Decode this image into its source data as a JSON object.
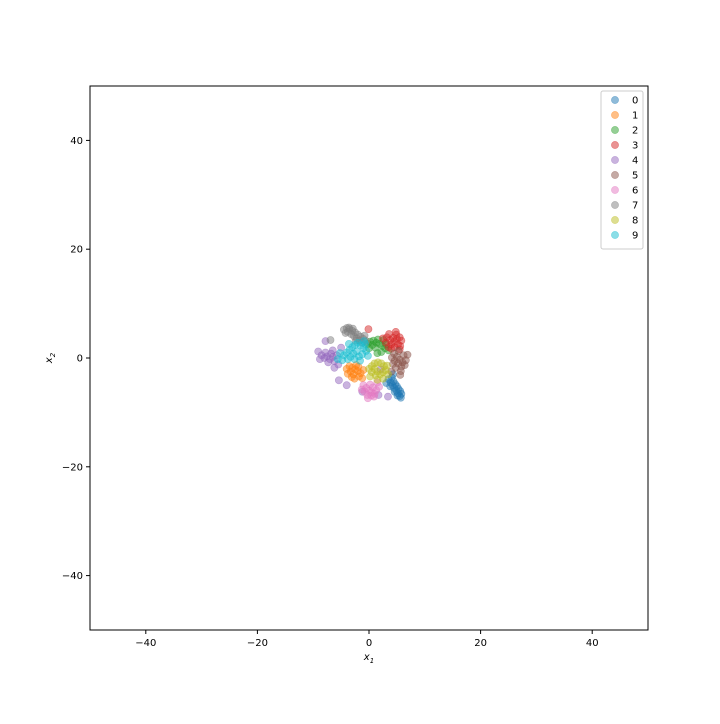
{
  "chart_data": {
    "type": "scatter",
    "title": "",
    "xlabel": "x",
    "xlabel_sub": "1",
    "ylabel": "x",
    "ylabel_sub": "2",
    "xlim": [
      -50,
      50
    ],
    "ylim": [
      -50,
      50
    ],
    "xticks": [
      -40,
      -20,
      0,
      20,
      40
    ],
    "yticks": [
      -40,
      -20,
      0,
      20,
      40
    ],
    "xtick_labels": [
      "−40",
      "−20",
      "0",
      "20",
      "40"
    ],
    "ytick_labels": [
      "−40",
      "−20",
      "0",
      "20",
      "40"
    ],
    "grid": false,
    "legend_position": "top-right",
    "series": [
      {
        "name": "0",
        "color": "#1f77b4",
        "points": [
          [
            4.4,
            -4.3
          ],
          [
            4.7,
            -4.8
          ],
          [
            5.0,
            -5.2
          ],
          [
            5.3,
            -5.7
          ],
          [
            5.6,
            -6.1
          ],
          [
            5.8,
            -6.6
          ],
          [
            5.5,
            -7.0
          ],
          [
            5.2,
            -6.5
          ],
          [
            4.9,
            -6.0
          ],
          [
            4.5,
            -5.5
          ],
          [
            4.2,
            -5.0
          ],
          [
            3.9,
            -4.5
          ],
          [
            3.5,
            -3.9
          ],
          [
            4.1,
            -3.6
          ],
          [
            5.1,
            -6.9
          ],
          [
            4.6,
            -6.2
          ],
          [
            3.8,
            -5.2
          ],
          [
            5.7,
            -7.3
          ],
          [
            3.1,
            -4.6
          ],
          [
            4.3,
            -3.0
          ]
        ]
      },
      {
        "name": "1",
        "color": "#ff7f0e",
        "points": [
          [
            -3.5,
            -1.5
          ],
          [
            -3.0,
            -1.8
          ],
          [
            -2.5,
            -2.1
          ],
          [
            -2.0,
            -2.4
          ],
          [
            -1.5,
            -2.8
          ],
          [
            -2.8,
            -3.0
          ],
          [
            -3.3,
            -2.5
          ],
          [
            -1.8,
            -3.4
          ],
          [
            -2.3,
            -1.3
          ],
          [
            -1.2,
            -3.7
          ],
          [
            -3.8,
            -2.9
          ],
          [
            -1.0,
            -2.2
          ],
          [
            -2.6,
            -3.8
          ],
          [
            -1.9,
            -1.6
          ],
          [
            -3.1,
            -3.5
          ],
          [
            -4.0,
            -2.0
          ]
        ]
      },
      {
        "name": "2",
        "color": "#2ca02c",
        "points": [
          [
            0.2,
            3.0
          ],
          [
            0.8,
            3.2
          ],
          [
            1.3,
            2.8
          ],
          [
            1.9,
            2.6
          ],
          [
            2.4,
            2.2
          ],
          [
            0.6,
            2.4
          ],
          [
            1.6,
            3.4
          ],
          [
            2.9,
            1.8
          ],
          [
            3.5,
            1.4
          ],
          [
            0.0,
            1.8
          ],
          [
            1.1,
            1.9
          ],
          [
            2.2,
            1.1
          ],
          [
            -0.2,
            2.6
          ],
          [
            3.1,
            2.5
          ],
          [
            1.5,
            0.9
          ],
          [
            2.6,
            3.3
          ]
        ]
      },
      {
        "name": "3",
        "color": "#d62728",
        "points": [
          [
            3.5,
            2.0
          ],
          [
            4.0,
            2.5
          ],
          [
            4.5,
            3.0
          ],
          [
            5.0,
            3.5
          ],
          [
            5.5,
            3.8
          ],
          [
            5.8,
            3.2
          ],
          [
            5.2,
            2.5
          ],
          [
            4.6,
            2.0
          ],
          [
            4.0,
            1.7
          ],
          [
            3.8,
            3.3
          ],
          [
            4.3,
            3.7
          ],
          [
            4.9,
            4.3
          ],
          [
            3.2,
            3.8
          ],
          [
            5.6,
            2.2
          ],
          [
            3.0,
            2.8
          ],
          [
            4.8,
            4.8
          ],
          [
            3.6,
            4.4
          ],
          [
            -0.1,
            5.3
          ],
          [
            5.5,
            1.6
          ],
          [
            2.5,
            3.6
          ]
        ]
      },
      {
        "name": "4",
        "color": "#9467bd",
        "points": [
          [
            -8.5,
            0.5
          ],
          [
            -8.0,
            0.0
          ],
          [
            -7.5,
            0.3
          ],
          [
            -7.0,
            -0.2
          ],
          [
            -6.5,
            0.2
          ],
          [
            -6.8,
            0.8
          ],
          [
            -7.8,
            1.0
          ],
          [
            -8.8,
            -0.2
          ],
          [
            -6.2,
            -0.6
          ],
          [
            -5.8,
            0.5
          ],
          [
            -7.3,
            -0.8
          ],
          [
            -6.5,
            1.4
          ],
          [
            -5.5,
            -1.2
          ],
          [
            -7.8,
            3.1
          ],
          [
            -6.2,
            -1.8
          ],
          [
            -5.4,
            -4.1
          ],
          [
            -9.1,
            1.2
          ],
          [
            -4.0,
            -5.0
          ],
          [
            -1.2,
            -6.2
          ],
          [
            1.7,
            -6.8
          ],
          [
            3.4,
            -7.1
          ],
          [
            2.1,
            -2.1
          ],
          [
            -5.0,
            1.9
          ]
        ]
      },
      {
        "name": "5",
        "color": "#8c564b",
        "points": [
          [
            4.5,
            0.8
          ],
          [
            5.0,
            0.2
          ],
          [
            5.5,
            -0.3
          ],
          [
            6.0,
            -0.8
          ],
          [
            6.4,
            -1.3
          ],
          [
            5.8,
            -1.6
          ],
          [
            5.2,
            -1.0
          ],
          [
            4.6,
            -0.5
          ],
          [
            4.1,
            0.1
          ],
          [
            6.6,
            -0.4
          ],
          [
            5.3,
            1.3
          ],
          [
            4.3,
            -1.1
          ],
          [
            6.2,
            0.5
          ],
          [
            4.8,
            -1.8
          ],
          [
            5.7,
            -2.4
          ],
          [
            5.6,
            -3.1
          ],
          [
            6.9,
            0.6
          ],
          [
            4.0,
            -2.5
          ]
        ]
      },
      {
        "name": "6",
        "color": "#e377c2",
        "points": [
          [
            -1.0,
            -5.0
          ],
          [
            -0.5,
            -5.5
          ],
          [
            0.0,
            -6.0
          ],
          [
            0.5,
            -6.3
          ],
          [
            1.0,
            -6.6
          ],
          [
            -0.3,
            -6.8
          ],
          [
            0.7,
            -5.4
          ],
          [
            1.3,
            -5.9
          ],
          [
            -0.8,
            -6.2
          ],
          [
            0.2,
            -4.9
          ],
          [
            1.5,
            -4.5
          ],
          [
            -0.2,
            -7.4
          ],
          [
            0.9,
            -7.1
          ],
          [
            -1.3,
            -5.8
          ],
          [
            1.8,
            -5.3
          ],
          [
            0.4,
            -6.9
          ]
        ]
      },
      {
        "name": "7",
        "color": "#7f7f7f",
        "points": [
          [
            -4.5,
            5.2
          ],
          [
            -4.0,
            5.5
          ],
          [
            -3.5,
            5.3
          ],
          [
            -3.0,
            5.0
          ],
          [
            -2.5,
            4.7
          ],
          [
            -2.0,
            4.3
          ],
          [
            -1.5,
            3.9
          ],
          [
            -1.0,
            3.5
          ],
          [
            -0.5,
            3.1
          ],
          [
            -3.8,
            4.8
          ],
          [
            -3.2,
            4.4
          ],
          [
            -2.7,
            4.0
          ],
          [
            -2.2,
            3.6
          ],
          [
            -1.7,
            3.2
          ],
          [
            -4.2,
            4.6
          ],
          [
            -1.2,
            2.8
          ],
          [
            -3.6,
            5.6
          ],
          [
            -2.9,
            5.4
          ],
          [
            -0.8,
            4.1
          ],
          [
            -6.9,
            3.3
          ],
          [
            -2.4,
            3.2
          ]
        ]
      },
      {
        "name": "8",
        "color": "#bcbd22",
        "points": [
          [
            0.5,
            -1.5
          ],
          [
            1.0,
            -2.0
          ],
          [
            1.5,
            -2.5
          ],
          [
            2.0,
            -3.0
          ],
          [
            2.5,
            -2.6
          ],
          [
            3.0,
            -2.2
          ],
          [
            2.7,
            -1.5
          ],
          [
            2.2,
            -1.0
          ],
          [
            1.6,
            -0.8
          ],
          [
            1.0,
            -1.0
          ],
          [
            0.5,
            -2.6
          ],
          [
            1.2,
            -3.2
          ],
          [
            0.0,
            -2.0
          ],
          [
            3.2,
            -1.4
          ],
          [
            2.5,
            -3.8
          ],
          [
            1.5,
            -4.0
          ],
          [
            0.2,
            -3.4
          ],
          [
            3.4,
            -3.0
          ]
        ]
      },
      {
        "name": "9",
        "color": "#17becf",
        "points": [
          [
            -4.5,
            0.5
          ],
          [
            -4.0,
            1.0
          ],
          [
            -3.5,
            1.5
          ],
          [
            -3.0,
            2.0
          ],
          [
            -2.5,
            2.4
          ],
          [
            -2.0,
            2.8
          ],
          [
            -1.5,
            2.3
          ],
          [
            -1.0,
            1.8
          ],
          [
            -0.5,
            1.3
          ],
          [
            -2.8,
            0.8
          ],
          [
            -3.3,
            0.2
          ],
          [
            -2.2,
            1.2
          ],
          [
            -1.8,
            0.3
          ],
          [
            -1.2,
            0.7
          ],
          [
            -0.7,
            2.6
          ],
          [
            -3.8,
            -0.2
          ],
          [
            -5.2,
            0.9
          ],
          [
            -1.6,
            -0.5
          ],
          [
            -4.8,
            -0.4
          ],
          [
            -0.2,
            0.4
          ],
          [
            -2.6,
            -0.2
          ],
          [
            -3.6,
            2.6
          ],
          [
            -5.6,
            -0.2
          ],
          [
            -0.9,
            3.1
          ]
        ]
      }
    ]
  }
}
